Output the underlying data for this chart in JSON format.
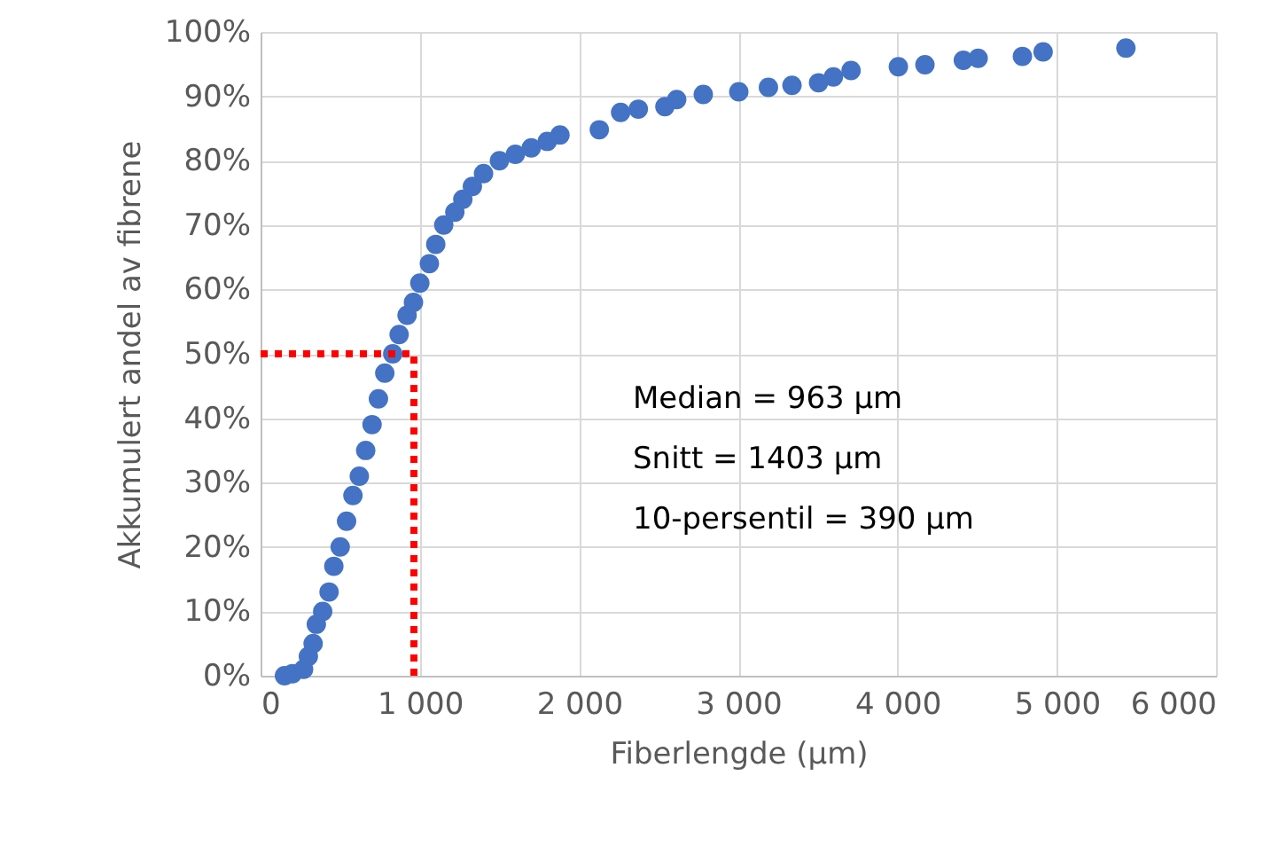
{
  "chart_data": {
    "type": "scatter",
    "xlabel": "Fiberlengde (µm)",
    "ylabel": "Akkumulert andel av fibrene",
    "x": [
      150,
      200,
      270,
      300,
      330,
      350,
      390,
      430,
      460,
      500,
      540,
      580,
      620,
      660,
      700,
      740,
      780,
      830,
      870,
      920,
      960,
      1000,
      1060,
      1100,
      1150,
      1220,
      1270,
      1330,
      1400,
      1500,
      1600,
      1700,
      1800,
      1880,
      2127,
      2261,
      2372,
      2539,
      2613,
      2780,
      3003,
      3189,
      3337,
      3504,
      3597,
      3708,
      4005,
      4172,
      4413,
      4506,
      4784,
      4914,
      5434
    ],
    "series": [
      {
        "color": "#4472c4",
        "values": [
          0,
          0.3,
          1,
          3,
          5,
          8,
          10,
          13,
          17,
          20,
          24,
          28,
          31,
          35,
          39,
          43,
          47,
          50,
          53,
          56,
          58,
          61,
          64,
          67,
          70,
          72,
          74,
          76,
          78,
          80,
          81,
          82,
          83,
          84,
          84.8,
          87.5,
          88,
          88.4,
          89.5,
          90.3,
          90.7,
          91.4,
          91.7,
          92.1,
          93,
          94,
          94.6,
          94.9,
          95.6,
          95.9,
          96.2,
          96.9,
          97.5
        ]
      }
    ],
    "marker": "circle",
    "xlim": [
      0,
      6000
    ],
    "ylim": [
      0,
      100
    ],
    "xticks": [
      0,
      {
        "value": 1000,
        "label": "1 000"
      },
      {
        "value": 2000,
        "label": "2 000"
      },
      {
        "value": 3000,
        "label": "3 000"
      },
      {
        "value": 4000,
        "label": "4 000"
      },
      {
        "value": 5000,
        "label": "5 000"
      },
      {
        "value": 6000,
        "label": "6 000"
      }
    ],
    "yticks": [
      {
        "value": 0,
        "label": "0%"
      },
      {
        "value": 10,
        "label": "10%"
      },
      {
        "value": 20,
        "label": "20%"
      },
      {
        "value": 30,
        "label": "30%"
      },
      {
        "value": 40,
        "label": "40%"
      },
      {
        "value": 50,
        "label": "50%"
      },
      {
        "value": 60,
        "label": "60%"
      },
      {
        "value": 70,
        "label": "70%"
      },
      {
        "value": 80,
        "label": "80%"
      },
      {
        "value": 90,
        "label": "90%"
      },
      {
        "value": 100,
        "label": "100%"
      }
    ],
    "grid": true,
    "ref_lines": [
      {
        "axis": "y",
        "value": 50,
        "color": "#ff0000",
        "line_style": "dotted"
      },
      {
        "axis": "x",
        "value": 963,
        "color": "#ff0000",
        "line_style": "dotted"
      }
    ],
    "annotations": [
      "Median = 963 µm",
      "Snitt = 1403 µm",
      "10-persentil = 390 µm"
    ]
  }
}
